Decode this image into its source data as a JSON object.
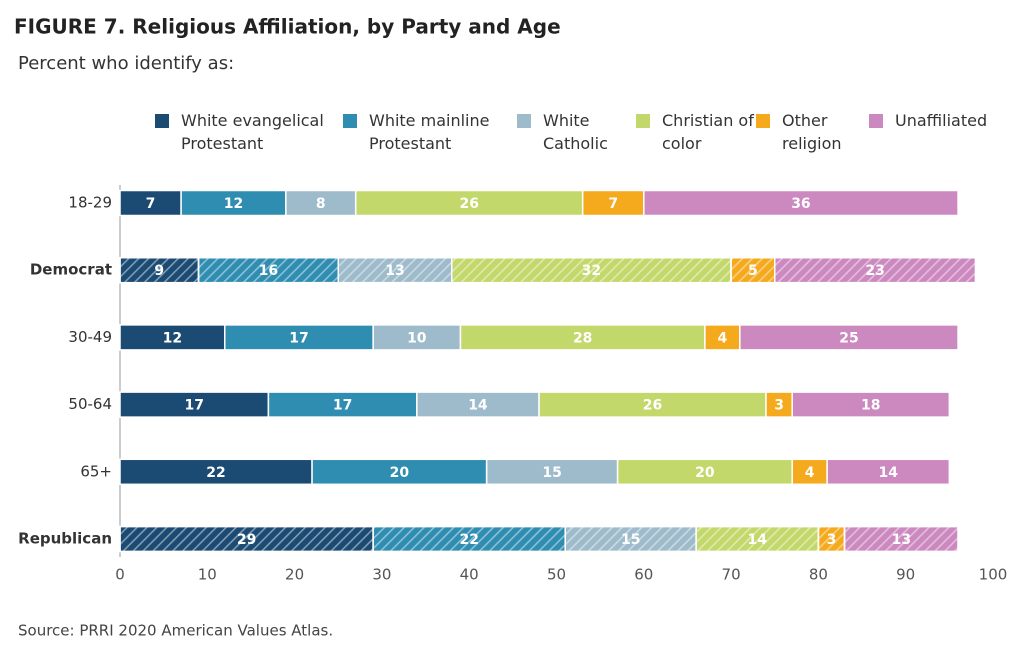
{
  "chart_data": {
    "type": "stacked_barh",
    "title": "FIGURE 7.  Religious Affiliation, by Party and Age",
    "subtitle": "Percent who identify as:",
    "source": "Source: PRRI 2020 American Values Atlas.",
    "categories": [
      "18-29",
      "Democrat",
      "30-49",
      "50-64",
      "65+",
      "Republican"
    ],
    "hatched": [
      false,
      true,
      false,
      false,
      false,
      true
    ],
    "series": [
      {
        "name": "White evangelical Protestant",
        "color": "#1b4a73",
        "values": [
          7,
          9,
          12,
          17,
          22,
          29
        ]
      },
      {
        "name": "White mainline Protestant",
        "color": "#2f8db1",
        "values": [
          12,
          16,
          17,
          17,
          20,
          22
        ]
      },
      {
        "name": "White Catholic",
        "color": "#9ebbcb",
        "values": [
          8,
          13,
          10,
          14,
          15,
          15
        ]
      },
      {
        "name": "Christian of color",
        "color": "#c3d86b",
        "values": [
          26,
          32,
          28,
          26,
          20,
          14
        ]
      },
      {
        "name": "Other religion",
        "color": "#f5a91d",
        "values": [
          7,
          5,
          4,
          3,
          4,
          3
        ]
      },
      {
        "name": "Unaffiliated",
        "color": "#cc89c0",
        "values": [
          36,
          23,
          25,
          18,
          14,
          13
        ]
      }
    ],
    "xlim": [
      0,
      100
    ],
    "xticks": [
      0,
      10,
      20,
      30,
      40,
      50,
      60,
      70,
      80,
      90,
      100
    ]
  }
}
